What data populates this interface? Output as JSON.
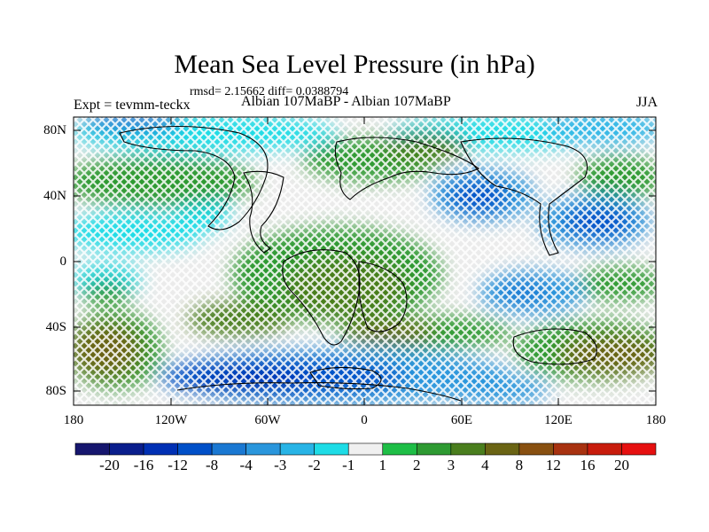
{
  "title": "Mean Sea Level Pressure (in hPa)",
  "stats": "rmsd= 2.15662 diff= 0.0388794",
  "expt_label": "Expt = tevmm-teckx",
  "experiment_name": "Albian   107MaBP - Albian   107MaBP",
  "season": "JJA",
  "lat_ticks": [
    "80N",
    "40N",
    "0",
    "40S",
    "80S"
  ],
  "lon_ticks": [
    "180",
    "120W",
    "60W",
    "0",
    "60E",
    "120E",
    "180"
  ],
  "colorbar": {
    "labels": [
      "-20",
      "-16",
      "-12",
      "-8",
      "-4",
      "-3",
      "-2",
      "-1",
      "1",
      "2",
      "3",
      "4",
      "8",
      "12",
      "16",
      "20"
    ],
    "colors": [
      "#16166e",
      "#0a1e8c",
      "#0030b4",
      "#0050c8",
      "#1a78d2",
      "#2a96dc",
      "#28b4e6",
      "#1edce6",
      "#f0f0f0",
      "#1ebe46",
      "#2e9a32",
      "#4a7e1e",
      "#6a6414",
      "#885010",
      "#a83210",
      "#c81c0c",
      "#e61010"
    ]
  },
  "colors": {
    "land_outline": "#000000",
    "neutral_bg": "#ebebeb"
  }
}
